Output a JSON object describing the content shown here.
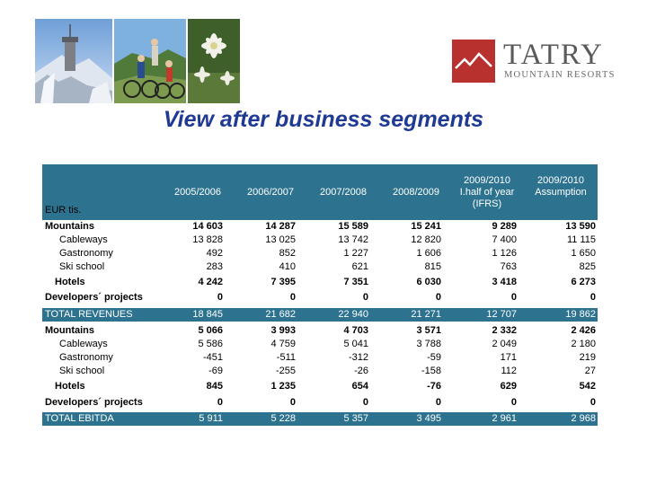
{
  "header": {
    "logo_word": "TATRY",
    "logo_sub": "MOUNTAIN RESORTS"
  },
  "title": "View after business segments",
  "table": {
    "unit_label": "EUR tis.",
    "columns": [
      "2005/2006",
      "2006/2007",
      "2007/2008",
      "2008/2009",
      "2009/2010 I.half of year (IFRS)",
      "2009/2010 Assumption"
    ],
    "column_lines": [
      [
        "2005/2006"
      ],
      [
        "2006/2007"
      ],
      [
        "2007/2008"
      ],
      [
        "2008/2009"
      ],
      [
        "2009/2010",
        "I.half of year",
        "(IFRS)"
      ],
      [
        "2009/2010",
        "Assumption"
      ]
    ],
    "rows": [
      {
        "label": "Mountains",
        "style": "bold",
        "values": [
          "14 603",
          "14 287",
          "15 589",
          "15 241",
          "9 289",
          "13 590"
        ]
      },
      {
        "label": "Cableways",
        "style": "indent",
        "values": [
          "13 828",
          "13 025",
          "13 742",
          "12 820",
          "7 400",
          "11 115"
        ]
      },
      {
        "label": "Gastronomy",
        "style": "indent",
        "values": [
          "492",
          "852",
          "1 227",
          "1 606",
          "1 126",
          "1 650"
        ]
      },
      {
        "label": "Ski school",
        "style": "indent",
        "values": [
          "283",
          "410",
          "621",
          "815",
          "763",
          "825"
        ]
      },
      {
        "label": "Hotels",
        "style": "bold-indent",
        "values": [
          "4 242",
          "7 395",
          "7 351",
          "6 030",
          "3 418",
          "6 273"
        ]
      },
      {
        "label": "Developers´ projects",
        "style": "bold",
        "values": [
          "0",
          "0",
          "0",
          "0",
          "0",
          "0"
        ]
      },
      {
        "label": "TOTAL REVENUES",
        "style": "total",
        "values": [
          "18 845",
          "21 682",
          "22 940",
          "21 271",
          "12 707",
          "19 862"
        ]
      },
      {
        "label": "Mountains",
        "style": "bold",
        "values": [
          "5 066",
          "3 993",
          "4 703",
          "3 571",
          "2 332",
          "2 426"
        ]
      },
      {
        "label": "Cableways",
        "style": "indent",
        "values": [
          "5 586",
          "4 759",
          "5 041",
          "3 788",
          "2 049",
          "2 180"
        ]
      },
      {
        "label": "Gastronomy",
        "style": "indent",
        "values": [
          "-451",
          "-511",
          "-312",
          "-59",
          "171",
          "219"
        ]
      },
      {
        "label": "Ski school",
        "style": "indent",
        "values": [
          "-69",
          "-255",
          "-26",
          "-158",
          "112",
          "27"
        ]
      },
      {
        "label": "Hotels",
        "style": "bold-indent",
        "values": [
          "845",
          "1 235",
          "654",
          "-76",
          "629",
          "542"
        ]
      },
      {
        "label": "Developers´ projects",
        "style": "bold",
        "values": [
          "0",
          "0",
          "0",
          "0",
          "0",
          "0"
        ]
      },
      {
        "label": "TOTAL EBITDA",
        "style": "total",
        "values": [
          "5 911",
          "5 228",
          "5 357",
          "3 495",
          "2 961",
          "2 968"
        ]
      }
    ]
  },
  "colors": {
    "title": "#1f3a93",
    "band": "#2d7390",
    "logo_red": "#b9312f"
  },
  "icons": [
    "mountain-station-photo",
    "cyclists-photo",
    "edelweiss-photo",
    "tatry-logo-mark"
  ]
}
